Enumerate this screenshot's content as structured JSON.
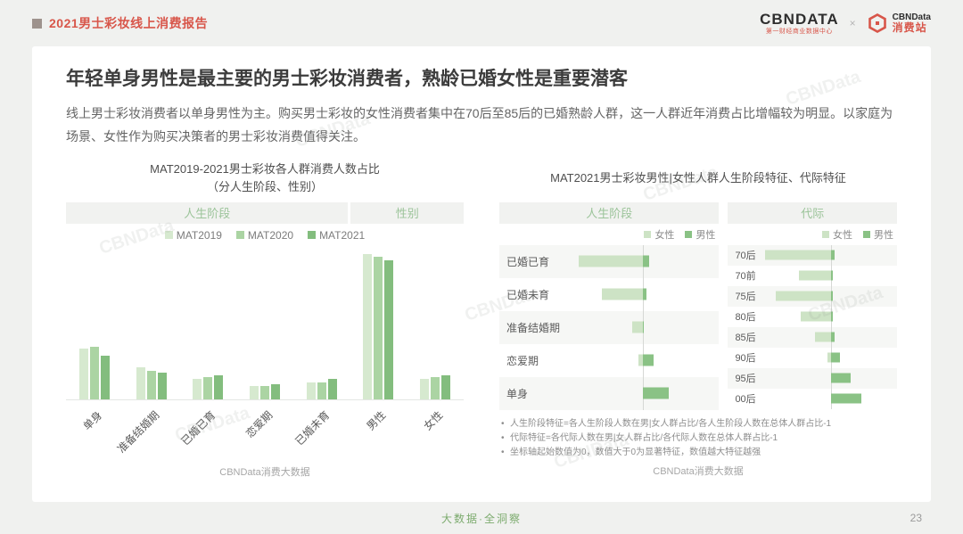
{
  "header": {
    "report_title": "2021男士彩妆线上消费报告",
    "logo_main": "CBNDATA",
    "logo_main_sub": "第一财经商业数据中心",
    "logo_times": "×",
    "logo_consumer": "CBNData",
    "logo_consumer_sub": "消费站"
  },
  "card": {
    "title": "年轻单身男性是最主要的男士彩妆消费者，熟龄已婚女性是重要潜客",
    "body": "线上男士彩妆消费者以单身男性为主。购买男士彩妆的女性消费者集中在70后至85后的已婚熟龄人群，这一人群近年消费占比增幅较为明显。以家庭为场景、女性作为购买决策者的男士彩妆消费值得关注。"
  },
  "captions": {
    "left": "CBNData消费大数据",
    "right": "CBNData消费大数据"
  },
  "footnotes": [
    "人生阶段特征=各人生阶段人数在男|女人群占比/各人生阶段人数在总体人群占比-1",
    "代际特征=各代际人数在男|女人群占比/各代际人数在总体人群占比-1",
    "坐标轴起始数值为0，数值大于0为显著特征，数值越大特征越强"
  ],
  "footer": {
    "tagline": "大数据·全洞察",
    "page_number": "23"
  },
  "watermark": "CBNData",
  "colors": {
    "accent_red": "#d8564a",
    "series_greens": [
      "#d6e9cf",
      "#abd4a3",
      "#83bd7e"
    ],
    "female_green": "#cde3c5",
    "male_green": "#8ac285",
    "band_text_green": "#9cc49a",
    "tagline_green": "#7cab6e"
  },
  "chart_data": [
    {
      "type": "bar",
      "title": "MAT2019-2021男士彩妆各人群消费人数占比（分人生阶段、性别）",
      "title_lines": [
        "MAT2019-2021男士彩妆各人群消费人数占比",
        "（分人生阶段、性别）"
      ],
      "band_labels": [
        "人生阶段",
        "性别"
      ],
      "band_span": [
        5,
        2
      ],
      "categories": [
        "单身",
        "准备结婚期",
        "已婚已育",
        "恋爱期",
        "已婚未育",
        "男性",
        "女性"
      ],
      "series": [
        {
          "name": "MAT2019",
          "values": [
            30,
            19,
            12,
            8,
            10,
            86,
            12
          ]
        },
        {
          "name": "MAT2020",
          "values": [
            31,
            17,
            13,
            8,
            10,
            84,
            13
          ]
        },
        {
          "name": "MAT2021",
          "values": [
            26,
            16,
            14,
            9,
            12,
            82,
            14
          ]
        }
      ],
      "ylim": [
        0,
        100
      ],
      "grid": false,
      "legend_position": "top"
    },
    {
      "type": "bar",
      "orientation": "horizontal-diverging",
      "title": "MAT2021男士彩妆男性|女性人群人生阶段特征、代际特征",
      "legend": [
        "女性",
        "男性"
      ],
      "panels": [
        {
          "header": "人生阶段",
          "categories": [
            "已婚已育",
            "已婚未育",
            "准备结婚期",
            "恋爱期",
            "单身"
          ],
          "series": [
            {
              "name": "女性",
              "values": [
                0.6,
                0.38,
                0.1,
                0.04,
                0.0
              ]
            },
            {
              "name": "男性",
              "values": [
                0.06,
                0.03,
                0.01,
                0.1,
                0.24
              ]
            }
          ]
        },
        {
          "header": "代际",
          "categories": [
            "70后",
            "70前",
            "75后",
            "80后",
            "85后",
            "90后",
            "95后",
            "00后"
          ],
          "series": [
            {
              "name": "女性",
              "values": [
                0.62,
                0.3,
                0.52,
                0.28,
                0.15,
                0.03,
                0.0,
                0.0
              ]
            },
            {
              "name": "男性",
              "values": [
                0.03,
                0.02,
                0.02,
                0.02,
                0.03,
                0.08,
                0.18,
                0.28
              ]
            }
          ]
        }
      ],
      "axis_note": "坐标轴起始数值为0",
      "legend_position": "top-right"
    }
  ]
}
